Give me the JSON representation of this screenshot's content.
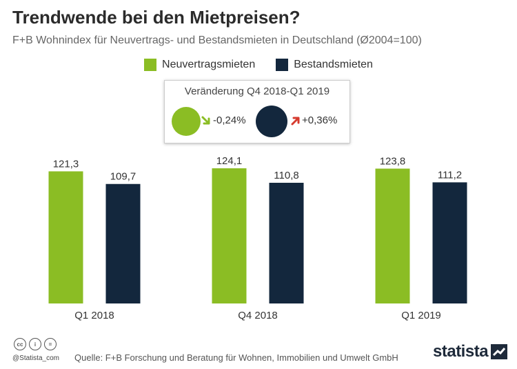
{
  "title": "Trendwende bei den Mietpreisen?",
  "subtitle": "F+B Wohnindex für Neuvertrags- und Bestandsmieten in Deutschland (Ø2004=100)",
  "colors": {
    "green": "#8bbd24",
    "navy": "#13273d",
    "down_arrow": "#8bbd24",
    "up_arrow": "#d63b2f"
  },
  "change_box": {
    "title": "Veränderung Q4 2018-Q1 2019",
    "items": [
      {
        "series": "Neuvertragsmieten",
        "value": "-0,24%",
        "direction": "down"
      },
      {
        "series": "Bestandsmieten",
        "value": "+0,36%",
        "direction": "up"
      }
    ]
  },
  "chart_data": {
    "type": "bar",
    "categories": [
      "Q1 2018",
      "Q4 2018",
      "Q1 2019"
    ],
    "series": [
      {
        "name": "Neuvertragsmieten",
        "color": "#8bbd24",
        "values": [
          121.3,
          124.1,
          123.8
        ],
        "labels": [
          "121,3",
          "124,1",
          "123,8"
        ]
      },
      {
        "name": "Bestandsmieten",
        "color": "#13273d",
        "values": [
          109.7,
          110.8,
          111.2
        ],
        "labels": [
          "109,7",
          "110,8",
          "111,2"
        ]
      }
    ],
    "title": "Trendwende bei den Mietpreisen?",
    "xlabel": "",
    "ylabel": "",
    "legend": "top-center",
    "grid": false
  },
  "footer": {
    "handle": "@Statista_com",
    "source": "Quelle: F+B Forschung und Beratung für Wohnen, Immobilien und Umwelt GmbH",
    "logo": "statista",
    "cc_icons": [
      "cc",
      "i",
      "="
    ]
  }
}
